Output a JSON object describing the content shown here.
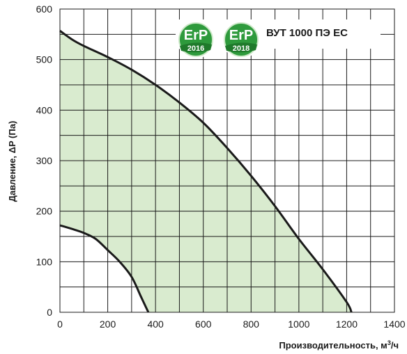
{
  "chart_data": {
    "type": "area",
    "xlabel": "Производительность,  м",
    "xlabel_sup": "3",
    "xlabel_suffix": "/ч",
    "ylabel": "Давление, ΔP (Па)",
    "xlim": [
      0,
      1400
    ],
    "ylim": [
      0,
      600
    ],
    "x_ticks": [
      0,
      200,
      400,
      600,
      800,
      1000,
      1200,
      1400
    ],
    "y_ticks": [
      0,
      100,
      200,
      300,
      400,
      500,
      600
    ],
    "grid": true,
    "series": [
      {
        "role": "max",
        "x": [
          0,
          50,
          100,
          200,
          300,
          400,
          500,
          600,
          700,
          800,
          900,
          1000,
          1100,
          1200,
          1220
        ],
        "y": [
          557,
          540,
          527,
          505,
          480,
          450,
          415,
          375,
          325,
          270,
          210,
          145,
          85,
          20,
          0
        ]
      },
      {
        "role": "min",
        "x": [
          0,
          50,
          100,
          150,
          200,
          250,
          300,
          340,
          370
        ],
        "y": [
          172,
          165,
          157,
          145,
          123,
          100,
          70,
          30,
          0
        ]
      }
    ],
    "fill_color": "#d9ebcf",
    "curve_color": "#1a1a1a",
    "title": "ВУТ 1000 ПЭ ЕС",
    "badges": [
      {
        "text": "ErP",
        "year": "2016"
      },
      {
        "text": "ErP",
        "year": "2018"
      }
    ],
    "badge_color": "#2e9a3c"
  }
}
